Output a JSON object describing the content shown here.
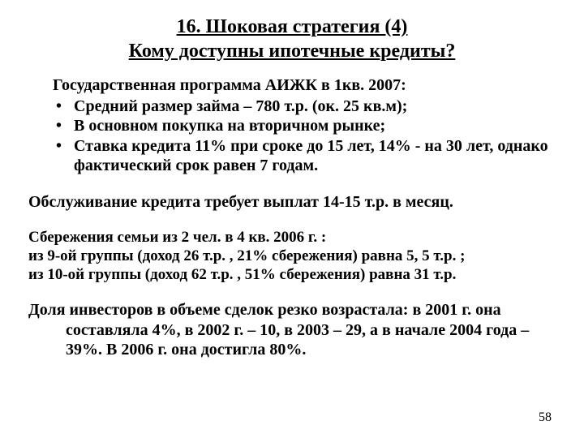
{
  "title": {
    "line1": "16. Шоковая стратегия (4)",
    "line2": "Кому доступны ипотечные кредиты?"
  },
  "intro": "Государственная программа АИЖК в 1кв. 2007:",
  "bullets": [
    "Средний размер займа – 780 т.р. (ок. 25 кв.м);",
    "В основном покупка на вторичном рынке;",
    "Ставка кредита 11% при сроке до 15 лет, 14% - на 30 лет, однако фактический срок равен 7 годам."
  ],
  "service": "Обслуживание кредита требует выплат 14-15 т.р. в месяц.",
  "savings": {
    "l1": "Сбережения семьи из 2 чел. в 4 кв. 2006 г. :",
    "l2": "из 9-ой группы (доход 26 т.р. , 21% сбережения) равна 5, 5 т.р. ;",
    "l3": "из 10-ой группы (доход 62 т.р. , 51% сбережения) равна 31 т.р."
  },
  "investors": "Доля инвесторов в объеме сделок резко возрастала: в 2001 г. она составляла 4%, в 2002 г. – 10, в 2003 – 29, а в начале 2004 года – 39%. В 2006 г. она достигла 80%.",
  "page": "58",
  "style": {
    "background_color": "#ffffff",
    "text_color": "#000000",
    "font_family": "Times New Roman",
    "title_fontsize": 24,
    "body_fontsize": 20,
    "savings_fontsize": 19,
    "pagenum_fontsize": 16,
    "bold": true,
    "title_underline": true
  }
}
